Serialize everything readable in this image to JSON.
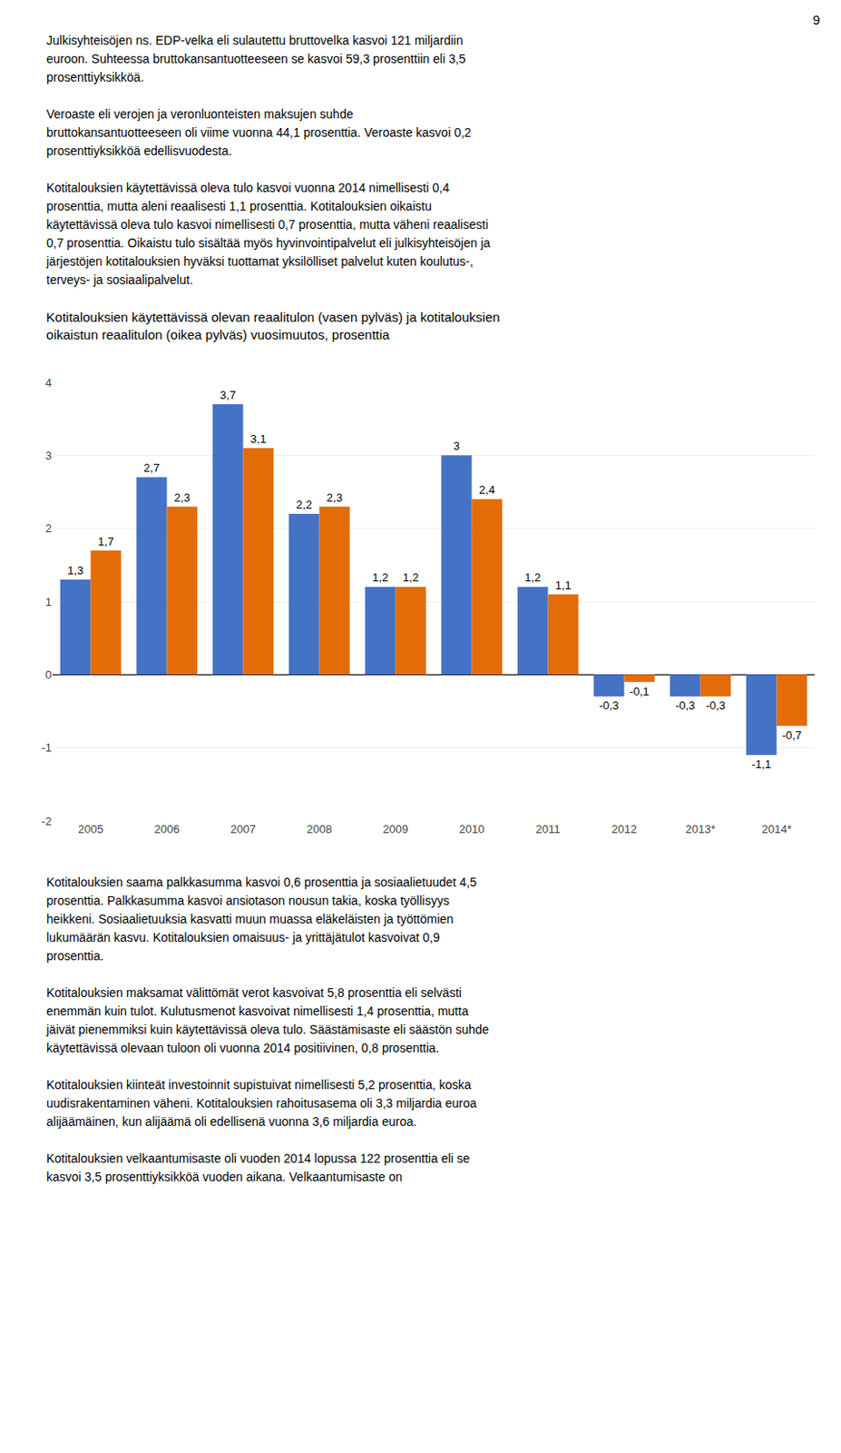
{
  "page_number": "9",
  "top_text": "Julkisyhteisöjen ns. EDP-velka eli sulautettu bruttovelka kasvoi 121 miljardiin\neuroon. Suhteessa bruttokansantuotteeseen se kasvoi 59,3 prosenttiin eli 3,5\nprosenttiyksikköä.\n\nVeroaste eli verojen ja veronluonteisten maksujen suhde\nbruttokansantuotteeseen oli viime vuonna 44,1 prosenttia. Veroaste kasvoi 0,2\nprosenttiyksikköä edellisvuodesta.\n\nKotitalouksien käytettävissä oleva tulo kasvoi vuonna 2014 nimellisesti 0,4\nprosenttia, mutta aleni reaalisesti 1,1 prosenttia. Kotitalouksien oikaistu\nkäytettävissä oleva tulo kasvoi nimellisesti 0,7 prosenttia, mutta väheni reaalisesti\n0,7 prosenttia. Oikaistu tulo sisältää myös hyvinvointipalvelut eli julkisyhteisöjen ja\njärjestöjen kotitalouksien hyväksi tuottamat yksilölliset palvelut kuten koulutus-,\nterveys- ja sosiaalipalvelut.",
  "bottom_text": "Kotitalouksien saama palkkasumma kasvoi 0,6 prosenttia ja sosiaalietuudet 4,5\nprosenttia. Palkkasumma kasvoi ansiotason nousun takia, koska työllisyys\nheikkeni. Sosiaalietuuksia kasvatti muun muassa eläkeläisten ja työttömien\nlukumäärän kasvu. Kotitalouksien omaisuus- ja yrittäjätulot kasvoivat 0,9\nprosenttia.\n\nKotitalouksien maksamat välittömät verot kasvoivat 5,8 prosenttia eli selvästi\nenemmän kuin tulot. Kulutusmenot kasvoivat nimellisesti 1,4 prosenttia, mutta\njäivät pienemmiksi kuin käytettävissä oleva tulo. Säästämisaste eli säästön suhde\nkäytettävissä olevaan tuloon oli vuonna 2014 positiivinen, 0,8 prosenttia.\n\nKotitalouksien kiinteät investoinnit supistuivat nimellisesti 5,2 prosenttia, koska\nuudisrakentaminen väheni. Kotitalouksien rahoitusasema oli 3,3 miljardia euroa\nalijäämäinen, kun alijäämä oli edellisenä vuonna 3,6 miljardia euroa.\n\nKotitalouksien velkaantumisaste oli vuoden 2014 lopussa 122 prosenttia eli se\nkasvoi 3,5 prosenttiyksikköä vuoden aikana. Velkaantumisaste on",
  "chart_data": {
    "type": "bar",
    "title": "Kotitalouksien käytettävissä olevan reaalitulon (vasen pylväs) ja kotitalouksien\noikaistun reaalitulon (oikea pylväs) vuosimuutos, prosenttia",
    "categories": [
      "2005",
      "2006",
      "2007",
      "2008",
      "2009",
      "2010",
      "2011",
      "2012",
      "2013*",
      "2014*"
    ],
    "series": [
      {
        "color": "#4472C4",
        "values": [
          1.3,
          2.7,
          3.7,
          2.2,
          1.2,
          3.0,
          1.2,
          -0.3,
          -0.3,
          -1.1
        ],
        "value_labels": [
          "1,3",
          "2,7",
          "3,7",
          "2,2",
          "1,2",
          "3",
          "1,2",
          "-0,3",
          "-0,3",
          "-1,1"
        ]
      },
      {
        "color": "#E36C09",
        "values": [
          1.7,
          2.3,
          3.1,
          2.3,
          1.2,
          2.4,
          1.1,
          -0.1,
          -0.3,
          -0.7
        ],
        "value_labels": [
          "1,7",
          "2,3",
          "3,1",
          "2,3",
          "1,2",
          "2,4",
          "1,1",
          "-0,1",
          "-0,3",
          "-0,7"
        ]
      }
    ],
    "ylim": [
      -2,
      4
    ],
    "yticks": [
      -2,
      -1,
      0,
      1,
      2,
      3,
      4
    ],
    "grid": true,
    "data_labels": true
  }
}
